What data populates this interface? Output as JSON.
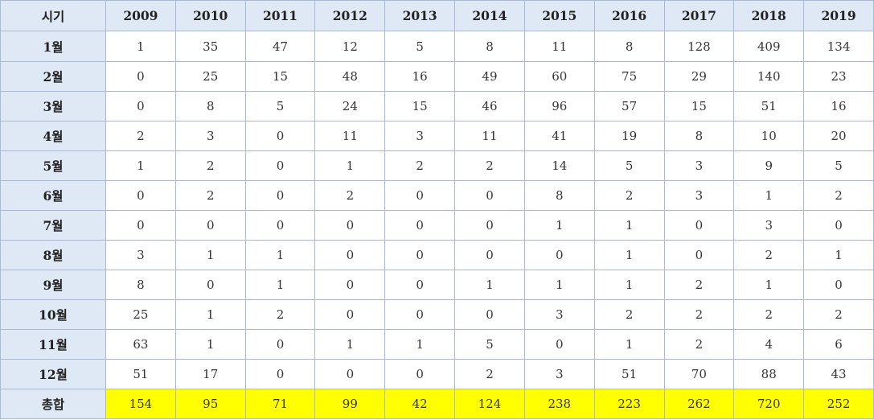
{
  "colors": {
    "header_bg": "#dfe9f6",
    "border": "#a8b8d8",
    "total_highlight": "#ffff00"
  },
  "table": {
    "corner_label": "시기",
    "years": [
      "2009",
      "2010",
      "2011",
      "2012",
      "2013",
      "2014",
      "2015",
      "2016",
      "2017",
      "2018",
      "2019"
    ],
    "rows": [
      {
        "label": "1월",
        "values": [
          "1",
          "35",
          "47",
          "12",
          "5",
          "8",
          "11",
          "8",
          "128",
          "409",
          "134"
        ]
      },
      {
        "label": "2월",
        "values": [
          "0",
          "25",
          "15",
          "48",
          "16",
          "49",
          "60",
          "75",
          "29",
          "140",
          "23"
        ]
      },
      {
        "label": "3월",
        "values": [
          "0",
          "8",
          "5",
          "24",
          "15",
          "46",
          "96",
          "57",
          "15",
          "51",
          "16"
        ]
      },
      {
        "label": "4월",
        "values": [
          "2",
          "3",
          "0",
          "11",
          "3",
          "11",
          "41",
          "19",
          "8",
          "10",
          "20"
        ]
      },
      {
        "label": "5월",
        "values": [
          "1",
          "2",
          "0",
          "1",
          "2",
          "2",
          "14",
          "5",
          "3",
          "9",
          "5"
        ]
      },
      {
        "label": "6월",
        "values": [
          "0",
          "2",
          "0",
          "2",
          "0",
          "0",
          "8",
          "2",
          "3",
          "1",
          "2"
        ]
      },
      {
        "label": "7월",
        "values": [
          "0",
          "0",
          "0",
          "0",
          "0",
          "0",
          "1",
          "1",
          "0",
          "3",
          "0"
        ]
      },
      {
        "label": "8월",
        "values": [
          "3",
          "1",
          "1",
          "0",
          "0",
          "0",
          "0",
          "1",
          "0",
          "2",
          "1"
        ]
      },
      {
        "label": "9월",
        "values": [
          "8",
          "0",
          "1",
          "0",
          "0",
          "1",
          "1",
          "1",
          "2",
          "1",
          "0"
        ]
      },
      {
        "label": "10월",
        "values": [
          "25",
          "1",
          "2",
          "0",
          "0",
          "0",
          "3",
          "2",
          "2",
          "2",
          "2"
        ]
      },
      {
        "label": "11월",
        "values": [
          "63",
          "1",
          "0",
          "1",
          "1",
          "5",
          "0",
          "1",
          "2",
          "4",
          "6"
        ]
      },
      {
        "label": "12월",
        "values": [
          "51",
          "17",
          "0",
          "0",
          "0",
          "2",
          "3",
          "51",
          "70",
          "88",
          "43"
        ]
      }
    ],
    "total": {
      "label": "총합",
      "values": [
        "154",
        "95",
        "71",
        "99",
        "42",
        "124",
        "238",
        "223",
        "262",
        "720",
        "252"
      ]
    }
  }
}
